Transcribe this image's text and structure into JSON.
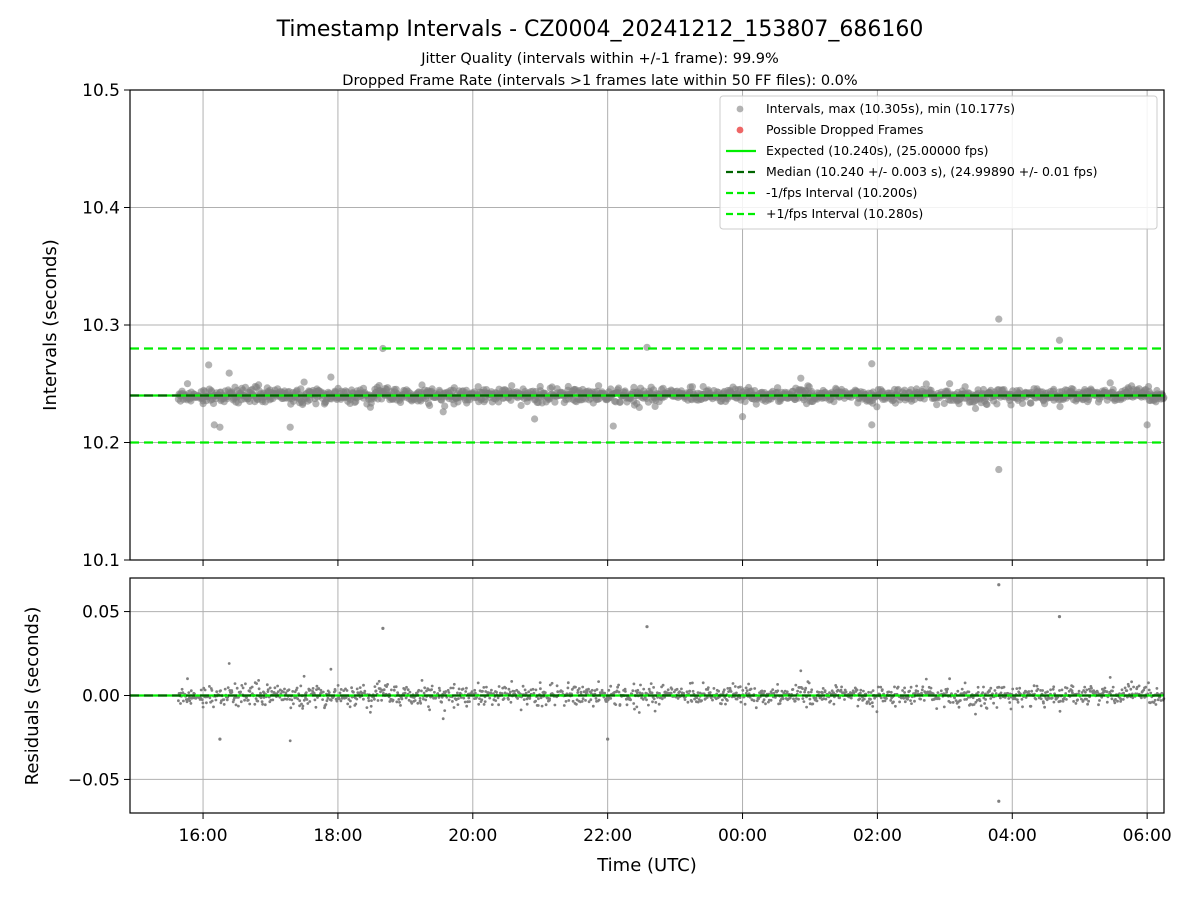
{
  "title": "Timestamp Intervals - CZ0004_20241212_153807_686160",
  "subtitle_1": "Jitter Quality (intervals within +/-1 frame): 99.9%",
  "subtitle_2": "Dropped Frame Rate (intervals >1 frames late within 50 FF files): 0.0%",
  "colors": {
    "points": "#808080",
    "dropped": "#ee6666",
    "expected": "#00ee00",
    "median": "#006400",
    "bounds": "#00ee00",
    "grid": "#b0b0b0"
  },
  "chart_data": [
    {
      "type": "scatter",
      "panel": "top",
      "ylabel": "Intervals (seconds)",
      "xlim": [
        "14:55",
        "06:15 (+1 day)"
      ],
      "ylim": [
        10.1,
        10.5
      ],
      "y_ticks": [
        "10.1",
        "10.2",
        "10.3",
        "10.4",
        "10.5"
      ],
      "grid": true,
      "legend_position": "top-right",
      "legend": [
        "Intervals, max (10.305s), min (10.177s)",
        "Possible Dropped Frames",
        "Expected (10.240s), (25.00000 fps)",
        "Median (10.240 +/- 0.003 s), (24.99890 +/- 0.01 fps)",
        "-1/fps Interval (10.200s)",
        "+1/fps Interval (10.280s)"
      ],
      "x_range": [
        "15:38",
        "06:15 (+1 day)"
      ],
      "interval_stats": {
        "max": 10.305,
        "min": 10.177,
        "median": 10.24,
        "std": 0.003
      },
      "reference_lines": {
        "expected": 10.24,
        "median": 10.24,
        "minus_1_fps": 10.2,
        "plus_1_fps": 10.28
      },
      "outliers": [
        {
          "x": "16:05",
          "y": 10.266
        },
        {
          "x": "16:10",
          "y": 10.215
        },
        {
          "x": "16:15",
          "y": 10.213
        },
        {
          "x": "18:40",
          "y": 10.28
        },
        {
          "x": "20:55",
          "y": 10.22
        },
        {
          "x": "22:05",
          "y": 10.214
        },
        {
          "x": "22:35",
          "y": 10.281
        },
        {
          "x": "00:00",
          "y": 10.222
        },
        {
          "x": "01:55",
          "y": 10.267
        },
        {
          "x": "01:55",
          "y": 10.215
        },
        {
          "x": "03:48",
          "y": 10.305
        },
        {
          "x": "03:48",
          "y": 10.177
        },
        {
          "x": "04:42",
          "y": 10.287
        },
        {
          "x": "06:00",
          "y": 10.215
        }
      ]
    },
    {
      "type": "scatter",
      "panel": "bottom",
      "xlabel": "Time (UTC)",
      "ylabel": "Residuals (seconds)",
      "x_ticks": [
        "16:00",
        "18:00",
        "20:00",
        "22:00",
        "00:00",
        "02:00",
        "04:00",
        "06:00"
      ],
      "y_ticks": [
        "−0.05",
        "0.00",
        "0.05"
      ],
      "ylim": [
        -0.07,
        0.07
      ],
      "grid": true,
      "reference_lines": {
        "zero": 0.0
      },
      "outliers": [
        {
          "x": "18:40",
          "y": 0.04
        },
        {
          "x": "22:35",
          "y": 0.041
        },
        {
          "x": "03:48",
          "y": 0.066
        },
        {
          "x": "03:48",
          "y": -0.063
        },
        {
          "x": "04:42",
          "y": 0.047
        },
        {
          "x": "16:15",
          "y": -0.026
        },
        {
          "x": "22:00",
          "y": -0.026
        }
      ]
    }
  ]
}
